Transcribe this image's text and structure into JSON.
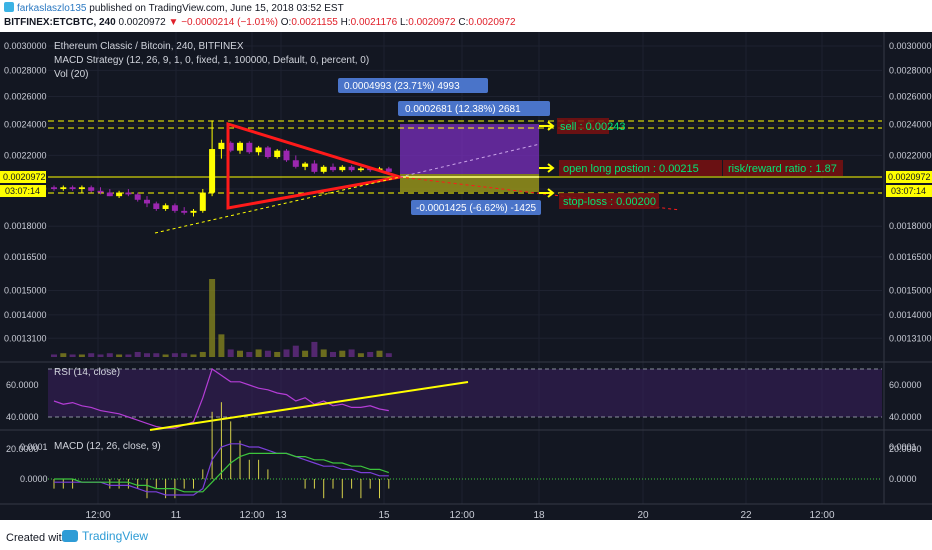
{
  "header": {
    "author": "farkaslaszlo135",
    "published": "published on TradingView.com, June 15, 2018 03:52 EST",
    "symbol": "BITFINEX:ETCBTC, 240",
    "last": "0.0020972",
    "change": "−0.0000214 (−1.01%)",
    "o_label": "O:",
    "o": "0.0021155",
    "h_label": "H:",
    "h": "0.0021176",
    "l_label": "L:",
    "l": "0.0020972",
    "c_label": "C:",
    "c": "0.0020972"
  },
  "legend": {
    "title": "Ethereum Classic / Bitcoin, 240, BITFINEX",
    "strategy": "MACD Strategy (12, 26, 9, 1, 0, fixed, 1, 100000, Default, 0, percent, 0)",
    "vol": "Vol (20)",
    "rsi": "RSI (14, close)",
    "macd": "MACD (12, 26, close, 9)"
  },
  "price_axis": [
    "0.0030000",
    "0.0028000",
    "0.0026000",
    "0.0024000",
    "0.0022000",
    "0.0020000",
    "0.0018000",
    "0.0016500",
    "0.0015000",
    "0.0014000",
    "0.0013100"
  ],
  "price_tag": "0.0020972",
  "time_tag": "03:07:14",
  "rsi_axis": [
    "60.0000",
    "40.0000",
    "20.0000"
  ],
  "macd_axis": [
    "0.0001",
    "0.0000"
  ],
  "time_axis": [
    "12:00",
    "11",
    "12:00",
    "13",
    "15",
    "12:00",
    "18",
    "20",
    "22",
    "12:00"
  ],
  "annotations": {
    "measure_total": "0.0004993 (23.71%) 4993",
    "measure_target": "0.0002681 (12.38%) 2681",
    "measure_stop": "-0.0001425 (-6.62%) -1425",
    "sell": "sell : 0.00243",
    "entry": "open long postion : 0.00215",
    "rr": "risk/reward ratio : 1.87",
    "stop": "stop-loss : 0.00200"
  },
  "colors": {
    "bg": "#131722",
    "up_candle": "#ffff00",
    "down_candle": "#9c27b0",
    "target_zone": "#7b2fbe",
    "stop_zone": "#9e9a1a",
    "note_text": "#00e676",
    "note_bg": "#7a1010",
    "triangle": "#ff1a1a",
    "trendline": "#ffff00",
    "rsi_line": "#b43dd6",
    "macd_line": "#7b3fd9",
    "signal_line": "#3cc43c"
  },
  "chart_data": {
    "type": "candlestick",
    "title": "Ethereum Classic / Bitcoin, 240, BITFINEX",
    "ylim": [
      0.00125,
      0.00305
    ],
    "candles": [
      {
        "o": 0.00201,
        "h": 0.00202,
        "l": 0.00199,
        "c": 0.002
      },
      {
        "o": 0.002,
        "h": 0.00202,
        "l": 0.00199,
        "c": 0.00201
      },
      {
        "o": 0.00201,
        "h": 0.00202,
        "l": 0.00199,
        "c": 0.002
      },
      {
        "o": 0.002,
        "h": 0.00202,
        "l": 0.00198,
        "c": 0.00201
      },
      {
        "o": 0.00201,
        "h": 0.00202,
        "l": 0.00198,
        "c": 0.00199
      },
      {
        "o": 0.00199,
        "h": 0.00201,
        "l": 0.00197,
        "c": 0.00198
      },
      {
        "o": 0.00198,
        "h": 0.002,
        "l": 0.00196,
        "c": 0.00196
      },
      {
        "o": 0.00196,
        "h": 0.00199,
        "l": 0.00195,
        "c": 0.00198
      },
      {
        "o": 0.00198,
        "h": 0.002,
        "l": 0.00196,
        "c": 0.00197
      },
      {
        "o": 0.00197,
        "h": 0.00198,
        "l": 0.00193,
        "c": 0.00194
      },
      {
        "o": 0.00194,
        "h": 0.00196,
        "l": 0.0019,
        "c": 0.00192
      },
      {
        "o": 0.00192,
        "h": 0.00193,
        "l": 0.00188,
        "c": 0.00189
      },
      {
        "o": 0.00189,
        "h": 0.00192,
        "l": 0.00188,
        "c": 0.00191
      },
      {
        "o": 0.00191,
        "h": 0.00192,
        "l": 0.00187,
        "c": 0.00188
      },
      {
        "o": 0.00188,
        "h": 0.0019,
        "l": 0.00186,
        "c": 0.00187
      },
      {
        "o": 0.00187,
        "h": 0.00189,
        "l": 0.00185,
        "c": 0.00188
      },
      {
        "o": 0.00188,
        "h": 0.002,
        "l": 0.00187,
        "c": 0.00198
      },
      {
        "o": 0.00198,
        "h": 0.00243,
        "l": 0.00196,
        "c": 0.00224
      },
      {
        "o": 0.00224,
        "h": 0.0023,
        "l": 0.00218,
        "c": 0.00228
      },
      {
        "o": 0.00228,
        "h": 0.00229,
        "l": 0.00222,
        "c": 0.00223
      },
      {
        "o": 0.00223,
        "h": 0.00229,
        "l": 0.00221,
        "c": 0.00228
      },
      {
        "o": 0.00228,
        "h": 0.00229,
        "l": 0.00221,
        "c": 0.00222
      },
      {
        "o": 0.00222,
        "h": 0.00226,
        "l": 0.0022,
        "c": 0.00225
      },
      {
        "o": 0.00225,
        "h": 0.00226,
        "l": 0.00218,
        "c": 0.00219
      },
      {
        "o": 0.00219,
        "h": 0.00224,
        "l": 0.00218,
        "c": 0.00223
      },
      {
        "o": 0.00223,
        "h": 0.00224,
        "l": 0.00216,
        "c": 0.00217
      },
      {
        "o": 0.00217,
        "h": 0.0022,
        "l": 0.00212,
        "c": 0.00213
      },
      {
        "o": 0.00213,
        "h": 0.00216,
        "l": 0.00211,
        "c": 0.00215
      },
      {
        "o": 0.00215,
        "h": 0.00217,
        "l": 0.00209,
        "c": 0.0021
      },
      {
        "o": 0.0021,
        "h": 0.00214,
        "l": 0.00209,
        "c": 0.00213
      },
      {
        "o": 0.00213,
        "h": 0.00215,
        "l": 0.0021,
        "c": 0.00211
      },
      {
        "o": 0.00211,
        "h": 0.00214,
        "l": 0.0021,
        "c": 0.00213
      },
      {
        "o": 0.00213,
        "h": 0.00214,
        "l": 0.0021,
        "c": 0.00211
      },
      {
        "o": 0.00211,
        "h": 0.00213,
        "l": 0.0021,
        "c": 0.00212
      },
      {
        "o": 0.00212,
        "h": 0.00213,
        "l": 0.0021,
        "c": 0.00211
      },
      {
        "o": 0.00211,
        "h": 0.00213,
        "l": 0.0021,
        "c": 0.00212
      },
      {
        "o": 0.00212,
        "h": 0.00213,
        "l": 0.00209,
        "c": 0.0021
      }
    ],
    "volume": [
      2,
      3,
      2,
      2,
      3,
      2,
      3,
      2,
      2,
      4,
      3,
      3,
      2,
      3,
      3,
      2,
      4,
      62,
      18,
      6,
      5,
      4,
      6,
      5,
      4,
      6,
      9,
      5,
      12,
      6,
      4,
      5,
      6,
      3,
      4,
      5,
      3
    ],
    "rsi": [
      50,
      48,
      49,
      47,
      46,
      44,
      43,
      42,
      40,
      38,
      36,
      34,
      33,
      33,
      35,
      37,
      52,
      70,
      66,
      62,
      62,
      60,
      58,
      57,
      55,
      54,
      50,
      52,
      48,
      50,
      47,
      48,
      46,
      46,
      47,
      45,
      44
    ],
    "macd": [
      -1e-05,
      -1e-05,
      -1e-05,
      -1e-05,
      -1e-05,
      -1e-05,
      -2e-05,
      -2e-05,
      -2e-05,
      -3e-05,
      -4e-05,
      -4e-05,
      -5e-05,
      -5e-05,
      -5e-05,
      -5e-05,
      -3e-05,
      6e-05,
      0.0001,
      0.00011,
      0.00011,
      0.0001,
      0.0001,
      9e-05,
      8e-05,
      8e-05,
      7e-05,
      6e-05,
      5e-05,
      4e-05,
      4e-05,
      3e-05,
      3e-05,
      2e-05,
      2e-05,
      1e-05,
      1e-05
    ],
    "signal": [
      0,
      0,
      0,
      -1e-05,
      -1e-05,
      -1e-05,
      -1e-05,
      -1e-05,
      -1e-05,
      -2e-05,
      -2e-05,
      -3e-05,
      -3e-05,
      -3e-05,
      -4e-05,
      -4e-05,
      -4e-05,
      -1e-05,
      2e-05,
      5e-05,
      7e-05,
      8e-05,
      8e-05,
      8e-05,
      8e-05,
      8e-05,
      7e-05,
      7e-05,
      6e-05,
      6e-05,
      5e-05,
      5e-05,
      4e-05,
      4e-05,
      3e-05,
      3e-05,
      2e-05
    ]
  }
}
